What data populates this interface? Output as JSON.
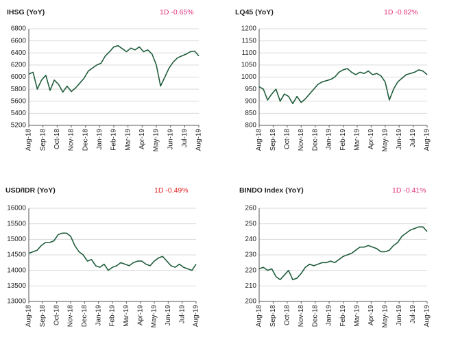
{
  "chart_data": [
    {
      "type": "line",
      "title": "IHSG (YoY)",
      "annotation": "1D -0.65%",
      "annotation_color": "#e0307a",
      "color": "#1e5c3a",
      "x": [
        0,
        0.3,
        0.6,
        0.9,
        1.2,
        1.5,
        1.8,
        2.1,
        2.4,
        2.7,
        3.0,
        3.3,
        3.6,
        3.9,
        4.2,
        4.5,
        4.8,
        5.1,
        5.4,
        5.7,
        6.0,
        6.3,
        6.6,
        6.9,
        7.2,
        7.5,
        7.8,
        8.1,
        8.4,
        8.7,
        9.0,
        9.3,
        9.6,
        9.9,
        10.2,
        10.5,
        10.8,
        11.1,
        11.4,
        11.7,
        12.0
      ],
      "values": [
        6050,
        6080,
        5800,
        5950,
        6030,
        5780,
        5950,
        5880,
        5750,
        5850,
        5760,
        5820,
        5900,
        5980,
        6100,
        6150,
        6200,
        6230,
        6350,
        6420,
        6500,
        6520,
        6470,
        6420,
        6480,
        6450,
        6500,
        6420,
        6450,
        6380,
        6200,
        5850,
        6000,
        6150,
        6250,
        6320,
        6350,
        6380,
        6420,
        6430,
        6350
      ],
      "xlim": [
        0,
        12
      ],
      "xticks": [
        {
          "value": 0,
          "label": "Aug-18"
        },
        {
          "value": 1,
          "label": "Sep-18"
        },
        {
          "value": 2,
          "label": "Oct-18"
        },
        {
          "value": 3,
          "label": "Nov-18"
        },
        {
          "value": 4,
          "label": "Dec-18"
        },
        {
          "value": 5,
          "label": "Jan-19"
        },
        {
          "value": 6,
          "label": "Feb-19"
        },
        {
          "value": 7,
          "label": "Mar-19"
        },
        {
          "value": 8,
          "label": "Apr-19"
        },
        {
          "value": 9,
          "label": "May-19"
        },
        {
          "value": 10,
          "label": "Jun-19"
        },
        {
          "value": 11,
          "label": "Jul-19"
        },
        {
          "value": 12,
          "label": "Aug-19"
        }
      ],
      "ylim": [
        5200,
        6800
      ],
      "yticks": [
        5200,
        5400,
        5600,
        5800,
        6000,
        6200,
        6400,
        6600,
        6800
      ],
      "grid": true
    },
    {
      "type": "line",
      "title": "LQ45 (YoY)",
      "annotation": "1D -0.82%",
      "annotation_color": "#e0307a",
      "color": "#1e5c3a",
      "x": [
        0,
        0.3,
        0.6,
        0.9,
        1.2,
        1.5,
        1.8,
        2.1,
        2.4,
        2.7,
        3.0,
        3.3,
        3.6,
        3.9,
        4.2,
        4.5,
        4.8,
        5.1,
        5.4,
        5.7,
        6.0,
        6.3,
        6.6,
        6.9,
        7.2,
        7.5,
        7.8,
        8.1,
        8.4,
        8.7,
        9.0,
        9.3,
        9.6,
        9.9,
        10.2,
        10.5,
        10.8,
        11.1,
        11.4,
        11.7,
        12.0
      ],
      "values": [
        960,
        950,
        905,
        930,
        950,
        900,
        930,
        920,
        890,
        920,
        895,
        910,
        930,
        950,
        970,
        980,
        985,
        990,
        1000,
        1020,
        1030,
        1035,
        1020,
        1010,
        1020,
        1015,
        1025,
        1010,
        1015,
        1005,
        980,
        905,
        950,
        980,
        995,
        1010,
        1015,
        1020,
        1030,
        1025,
        1010
      ],
      "xlim": [
        0,
        12
      ],
      "xticks": [
        {
          "value": 0,
          "label": "Aug-18"
        },
        {
          "value": 1,
          "label": "Sep-18"
        },
        {
          "value": 2,
          "label": "Oct-18"
        },
        {
          "value": 3,
          "label": "Nov-18"
        },
        {
          "value": 4,
          "label": "Dec-18"
        },
        {
          "value": 5,
          "label": "Jan-19"
        },
        {
          "value": 6,
          "label": "Feb-19"
        },
        {
          "value": 7,
          "label": "Mar-19"
        },
        {
          "value": 8,
          "label": "Apr-19"
        },
        {
          "value": 9,
          "label": "May-19"
        },
        {
          "value": 10,
          "label": "Jun-19"
        },
        {
          "value": 11,
          "label": "Jul-19"
        },
        {
          "value": 12,
          "label": "Aug-19"
        }
      ],
      "ylim": [
        800,
        1200
      ],
      "yticks": [
        800,
        850,
        900,
        950,
        1000,
        1050,
        1100,
        1150,
        1200
      ],
      "grid": true
    },
    {
      "type": "line",
      "title": "USD/IDR  (YoY)",
      "annotation": "1D -0.49%",
      "annotation_color": "#e02020",
      "color": "#1e5c3a",
      "x": [
        0,
        0.3,
        0.6,
        0.9,
        1.2,
        1.5,
        1.8,
        2.1,
        2.4,
        2.7,
        3.0,
        3.3,
        3.6,
        3.9,
        4.2,
        4.5,
        4.8,
        5.1,
        5.4,
        5.7,
        6.0,
        6.3,
        6.6,
        6.9,
        7.2,
        7.5,
        7.8,
        8.1,
        8.4,
        8.7,
        9.0,
        9.3,
        9.6,
        9.9,
        10.2,
        10.5,
        10.8,
        11.1,
        11.4,
        11.7,
        12.0
      ],
      "values": [
        14550,
        14600,
        14650,
        14800,
        14900,
        14900,
        14950,
        15150,
        15200,
        15200,
        15100,
        14800,
        14600,
        14500,
        14300,
        14350,
        14150,
        14100,
        14200,
        14000,
        14100,
        14150,
        14250,
        14200,
        14150,
        14250,
        14300,
        14300,
        14200,
        14150,
        14300,
        14400,
        14450,
        14300,
        14150,
        14100,
        14200,
        14100,
        14050,
        14000,
        14200
      ],
      "xlim": [
        0,
        12
      ],
      "xticks": [
        {
          "value": 0,
          "label": "Aug-18"
        },
        {
          "value": 1,
          "label": "Sep-18"
        },
        {
          "value": 2,
          "label": "Oct-18"
        },
        {
          "value": 3,
          "label": "Nov-18"
        },
        {
          "value": 4,
          "label": "Dec-18"
        },
        {
          "value": 5,
          "label": "Jan-19"
        },
        {
          "value": 6,
          "label": "Feb-19"
        },
        {
          "value": 7,
          "label": "Mar-19"
        },
        {
          "value": 8,
          "label": "Apr-19"
        },
        {
          "value": 9,
          "label": "May-19"
        },
        {
          "value": 10,
          "label": "Jun-19"
        },
        {
          "value": 11,
          "label": "Jul-19"
        },
        {
          "value": 12,
          "label": "Aug-19"
        }
      ],
      "ylim": [
        13000,
        16000
      ],
      "yticks": [
        13000,
        13500,
        14000,
        14500,
        15000,
        15500,
        16000
      ],
      "grid": true
    },
    {
      "type": "line",
      "title": "BINDO Index (YoY)",
      "annotation": "1D -0.41%",
      "annotation_color": "#e0307a",
      "color": "#1e5c3a",
      "x": [
        0,
        0.3,
        0.6,
        0.9,
        1.2,
        1.5,
        1.8,
        2.1,
        2.4,
        2.7,
        3.0,
        3.3,
        3.6,
        3.9,
        4.2,
        4.5,
        4.8,
        5.1,
        5.4,
        5.7,
        6.0,
        6.3,
        6.6,
        6.9,
        7.2,
        7.5,
        7.8,
        8.1,
        8.4,
        8.7,
        9.0,
        9.3,
        9.6,
        9.9,
        10.2,
        10.5,
        10.8,
        11.1,
        11.4,
        11.7,
        12.0
      ],
      "values": [
        221,
        222,
        220,
        221,
        216,
        214,
        217,
        220,
        214,
        215,
        218,
        222,
        224,
        223,
        224,
        225,
        225,
        226,
        225,
        227,
        229,
        230,
        231,
        233,
        235,
        235,
        236,
        235,
        234,
        232,
        232,
        233,
        236,
        238,
        242,
        244,
        246,
        247,
        248,
        248,
        245
      ],
      "xlim": [
        0,
        12
      ],
      "xticks": [
        {
          "value": 0,
          "label": "Aug-18"
        },
        {
          "value": 1,
          "label": "Sep-18"
        },
        {
          "value": 2,
          "label": "Oct-18"
        },
        {
          "value": 3,
          "label": "Nov-18"
        },
        {
          "value": 4,
          "label": "Dec-18"
        },
        {
          "value": 5,
          "label": "Jan-19"
        },
        {
          "value": 6,
          "label": "Feb-19"
        },
        {
          "value": 7,
          "label": "Mar-19"
        },
        {
          "value": 8,
          "label": "Apr-19"
        },
        {
          "value": 9,
          "label": "May-19"
        },
        {
          "value": 10,
          "label": "Jun-19"
        },
        {
          "value": 11,
          "label": "Jul-19"
        },
        {
          "value": 12,
          "label": "Aug-19"
        }
      ],
      "ylim": [
        200,
        260
      ],
      "yticks": [
        200,
        210,
        220,
        230,
        240,
        250,
        260
      ],
      "grid": true
    }
  ]
}
